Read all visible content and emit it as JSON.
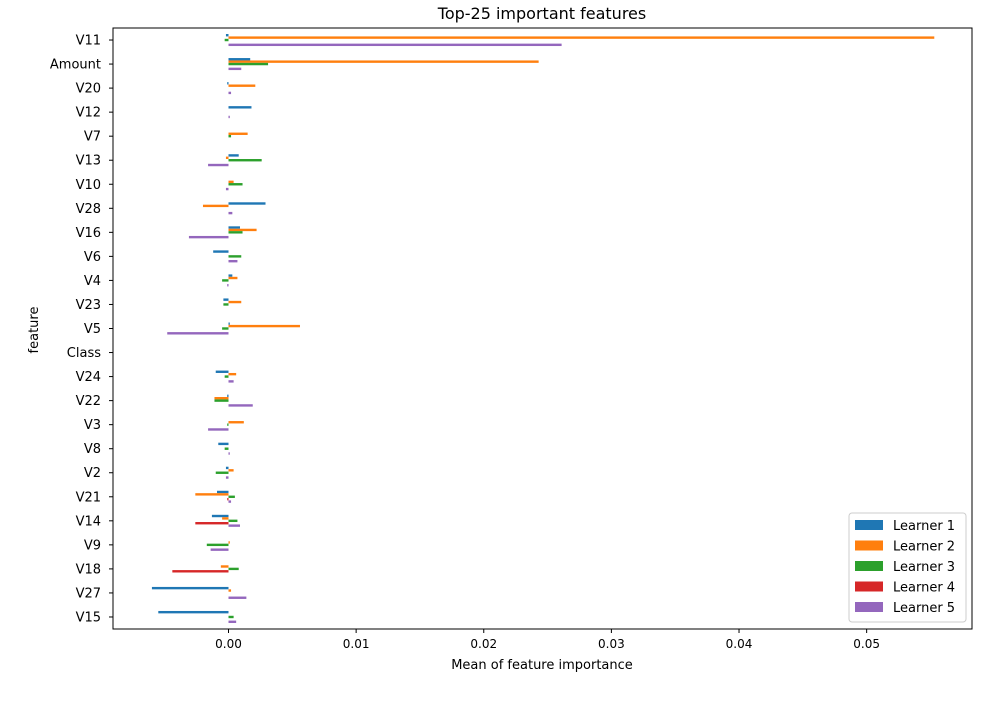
{
  "chart_data": {
    "type": "bar",
    "orientation": "horizontal",
    "title": "Top-25 important features",
    "xlabel": "Mean of feature importance",
    "ylabel": "feature",
    "xlim": [
      -0.009,
      0.058
    ],
    "xticks": [
      0.0,
      0.01,
      0.02,
      0.03,
      0.04,
      0.05
    ],
    "xtick_labels": [
      "0.00",
      "0.01",
      "0.02",
      "0.03",
      "0.04",
      "0.05"
    ],
    "grid": false,
    "legend_position": "bottom-right",
    "categories": [
      "V11",
      "Amount",
      "V20",
      "V12",
      "V7",
      "V13",
      "V10",
      "V28",
      "V16",
      "V6",
      "V4",
      "V23",
      "V5",
      "Class",
      "V24",
      "V22",
      "V3",
      "V8",
      "V2",
      "V21",
      "V14",
      "V9",
      "V18",
      "V27",
      "V15"
    ],
    "series": [
      {
        "name": "Learner 1",
        "color": "#1f77b4",
        "values": [
          -0.0002,
          0.0017,
          -0.0001,
          0.0018,
          0.0,
          0.0008,
          0.0,
          0.0029,
          0.0009,
          -0.0012,
          0.0003,
          -0.0004,
          0.0001,
          0.0,
          -0.001,
          -0.0001,
          0.0,
          -0.0008,
          -0.0002,
          -0.0009,
          -0.0013,
          0.0,
          0.0,
          -0.006,
          -0.0055
        ]
      },
      {
        "name": "Learner 2",
        "color": "#ff7f0e",
        "values": [
          0.0553,
          0.0243,
          0.0021,
          0.0,
          0.0015,
          -0.0002,
          0.0004,
          -0.002,
          0.0022,
          0.0,
          0.0007,
          0.001,
          0.0056,
          0.0,
          0.0006,
          -0.0011,
          0.0012,
          0.0,
          0.0004,
          -0.0026,
          -0.0005,
          0.0001,
          -0.0006,
          0.0002,
          0.0
        ]
      },
      {
        "name": "Learner 3",
        "color": "#2ca02c",
        "values": [
          -0.0003,
          0.0031,
          0.0,
          0.0,
          0.0002,
          0.0026,
          0.0011,
          0.0,
          0.0011,
          0.001,
          -0.0005,
          -0.0004,
          -0.0005,
          0.0,
          -0.0003,
          -0.0011,
          -0.0001,
          -0.0003,
          -0.001,
          0.0005,
          0.0007,
          -0.0017,
          0.0008,
          0.0,
          0.0004
        ]
      },
      {
        "name": "Learner 4",
        "color": "#d62728",
        "values": [
          0.0,
          0.0,
          0.0,
          0.0,
          0.0,
          0.0,
          0.0,
          0.0,
          0.0,
          0.0,
          0.0,
          0.0,
          0.0,
          0.0,
          0.0,
          0.0,
          0.0,
          0.0,
          0.0,
          -0.0001,
          -0.0026,
          0.0,
          -0.0044,
          0.0,
          0.0
        ]
      },
      {
        "name": "Learner 5",
        "color": "#9467bd",
        "values": [
          0.0261,
          0.001,
          0.0002,
          0.0001,
          0.0,
          -0.0016,
          -0.0002,
          0.0003,
          -0.0031,
          0.0007,
          -0.0001,
          0.0,
          -0.0048,
          0.0,
          0.0004,
          0.0019,
          -0.0016,
          0.0001,
          -0.0002,
          0.0002,
          0.0009,
          -0.0014,
          0.0,
          0.0014,
          0.0006
        ]
      }
    ]
  }
}
